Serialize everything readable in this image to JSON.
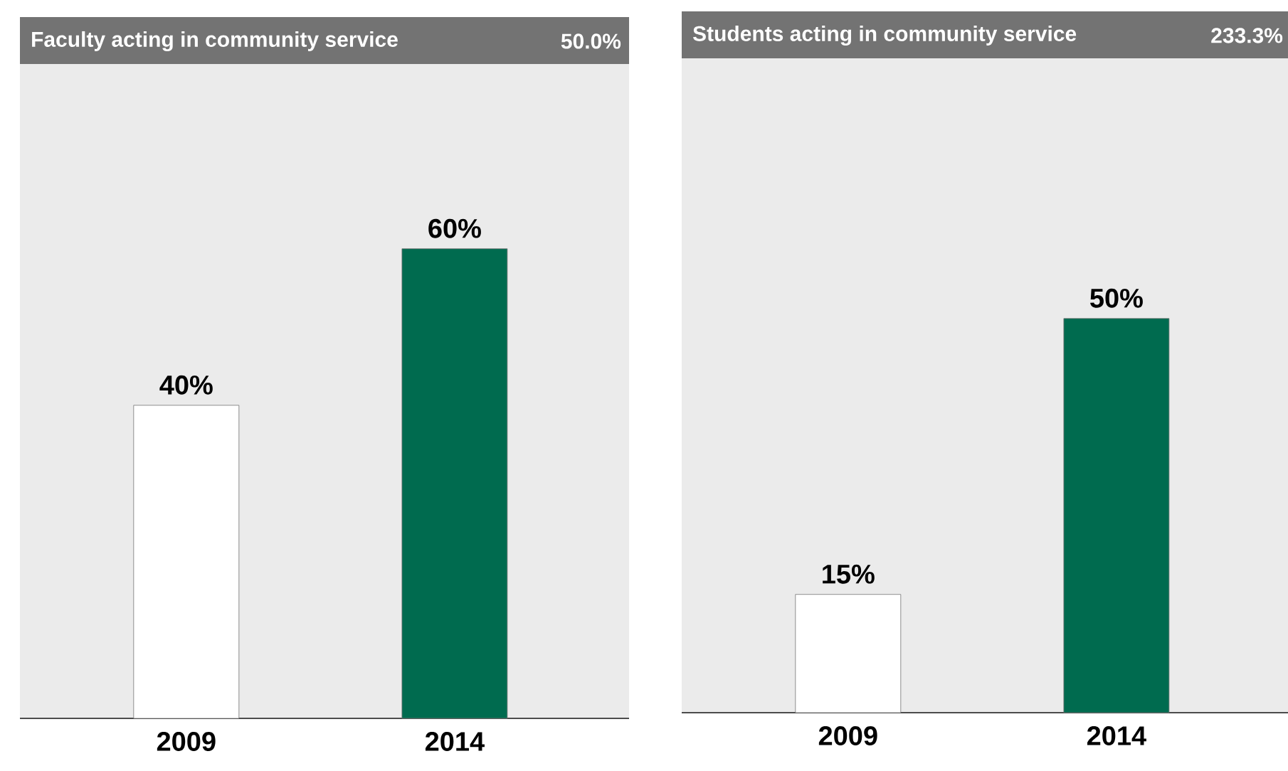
{
  "chart_data": [
    {
      "type": "bar",
      "title": "Faculty acting in community service",
      "annotations": [
        "50.0%"
      ],
      "categories": [
        "2009",
        "2014"
      ],
      "values": [
        40,
        60
      ],
      "value_labels": [
        "40%",
        "60%"
      ],
      "colors": [
        "#ffffff",
        "#006b4f"
      ],
      "ylim": [
        0,
        83.6
      ]
    },
    {
      "type": "bar",
      "title": "Students acting in community service",
      "annotations": [
        "233.3%"
      ],
      "categories": [
        "2009",
        "2014"
      ],
      "values": [
        15,
        50
      ],
      "value_labels": [
        "15%",
        "50%"
      ],
      "colors": [
        "#ffffff",
        "#006b4f"
      ],
      "ylim": [
        0,
        83
      ]
    }
  ]
}
